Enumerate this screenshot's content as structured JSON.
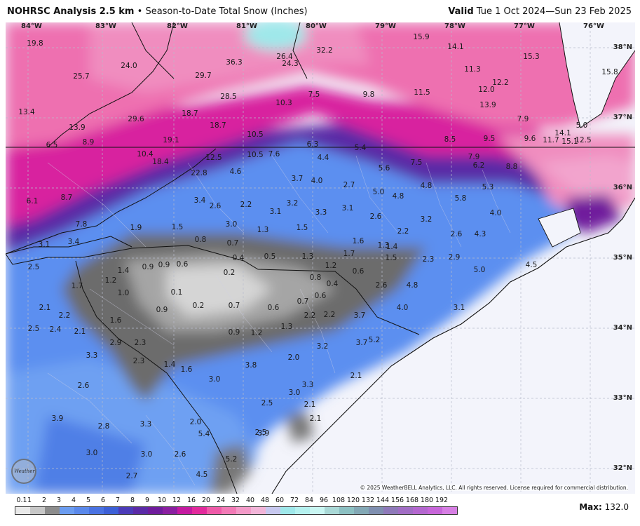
{
  "header": {
    "product": "NOHRSC Analysis 2.5 km",
    "separator": "•",
    "field": "Season-to-Date Total Snow (Inches)",
    "valid_label": "Valid",
    "valid_range": "Tue 1 Oct 2024—Sun 23 Feb 2025"
  },
  "map": {
    "longitude_labels": [
      "84°W",
      "83°W",
      "82°W",
      "81°W",
      "80°W",
      "79°W",
      "78°W",
      "77°W",
      "76°W"
    ],
    "latitude_labels": [
      "38°N",
      "37°N",
      "36°N",
      "35°N",
      "34°N",
      "33°N",
      "32°N"
    ],
    "copyright": "© 2025 WeatherBELL Analytics, LLC. All rights reserved. License required for commercial distribution.",
    "logo_text": "Weather",
    "snow_values": [
      "19.8",
      "24.0",
      "25.7",
      "29.7",
      "36.3",
      "26.4",
      "24.3",
      "32.2",
      "15.9",
      "14.1",
      "15.3",
      "15.8",
      "13.4",
      "29.6",
      "18.7",
      "28.5",
      "7.5",
      "9.8",
      "11.5",
      "11.3",
      "12.2",
      "12.0",
      "13.9",
      "7.9",
      "13.9",
      "18.7",
      "10.5",
      "10.3",
      "5.0",
      "14.1",
      "15.1",
      "12.5",
      "9.6",
      "11.7",
      "6.5",
      "8.9",
      "19.1",
      "10.5",
      "6.3",
      "5.4",
      "8.5",
      "9.5",
      "10.4",
      "18.4",
      "12.5",
      "7.6",
      "4.4",
      "5.6",
      "7.5",
      "7.9",
      "6.2",
      "8.8",
      "22.8",
      "4.6",
      "3.7",
      "4.0",
      "2.7",
      "5.0",
      "4.8",
      "4.8",
      "5.3",
      "6.1",
      "8.7",
      "3.4",
      "2.6",
      "2.2",
      "3.1",
      "3.2",
      "3.3",
      "3.1",
      "2.6",
      "5.8",
      "4.0",
      "7.8",
      "1.9",
      "1.5",
      "3.0",
      "1.3",
      "1.5",
      "3.2",
      "2.6",
      "4.3",
      "3.1",
      "3.4",
      "0.8",
      "0.7",
      "2.2",
      "1.6",
      "1.3",
      "1.4",
      "2.5",
      "1.4",
      "0.9",
      "0.9",
      "0.6",
      "0.4",
      "0.5",
      "1.3",
      "1.7",
      "1.5",
      "2.3",
      "2.9",
      "5.0",
      "4.5",
      "0.2",
      "1.2",
      "0.6",
      "1.7",
      "1.2",
      "0.1",
      "0.8",
      "0.4",
      "2.6",
      "4.8",
      "2.1",
      "1.0",
      "0.2",
      "0.7",
      "0.6",
      "0.7",
      "0.6",
      "4.0",
      "3.1",
      "2.2",
      "2.2",
      "0.9",
      "3.7",
      "1.6",
      "0.9",
      "1.2",
      "1.3",
      "2.2",
      "2.5",
      "2.4",
      "2.1",
      "5.2",
      "2.3",
      "2.9",
      "3.2",
      "3.7",
      "3.3",
      "2.3",
      "1.4",
      "1.6",
      "2.0",
      "3.8",
      "3.0",
      "3.3",
      "2.1",
      "2.6",
      "3.0",
      "2.5",
      "2.1",
      "2.1",
      "2.5",
      "3.9",
      "2.8",
      "3.3",
      "2.0",
      "5.4",
      "3.9",
      "3.0",
      "3.0",
      "2.6",
      "5.2",
      "2.7",
      "4.5"
    ]
  },
  "colorbar": {
    "labels": [
      "0.1",
      "1",
      "2",
      "3",
      "4",
      "5",
      "6",
      "7",
      "8",
      "9",
      "10",
      "12",
      "16",
      "20",
      "24",
      "32",
      "40",
      "48",
      "60",
      "72",
      "84",
      "96",
      "108",
      "120",
      "132",
      "144",
      "156",
      "168",
      "180",
      "192"
    ],
    "colors": [
      "#e9e9e9",
      "#c7c7c7",
      "#8c8c8c",
      "#6b9cf0",
      "#5a88ea",
      "#4a72e2",
      "#3c5fd6",
      "#4b3bb8",
      "#5a2aa6",
      "#6f1c9c",
      "#8a1fa0",
      "#c41aa0",
      "#e22a9c",
      "#ee5aa8",
      "#f27ab6",
      "#f39ac8",
      "#f2b4d8",
      "#c7c8ef",
      "#9fe8ea",
      "#b5f1ef",
      "#c9f6f2",
      "#a9d8d6",
      "#8cc0c2",
      "#83a8b5",
      "#7f8fb0",
      "#8e79b9",
      "#a16dc4",
      "#b467cf",
      "#c766d9",
      "#d67ee3"
    ],
    "max_label": "Max:",
    "max_value": "132.0"
  }
}
